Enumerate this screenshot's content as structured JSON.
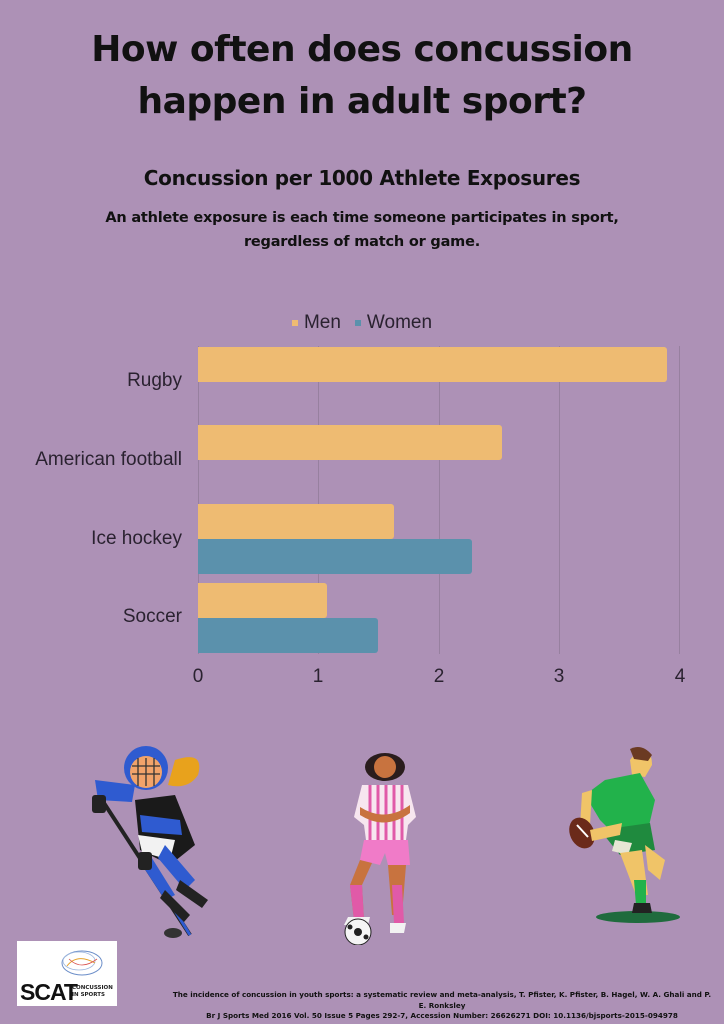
{
  "header": {
    "title_line1": "How often does concussion",
    "title_line2": "happen in adult sport?",
    "subtitle": "Concussion per 1000 Athlete Exposures",
    "description": "An athlete exposure is each time someone participates in sport, regardless of match or game."
  },
  "colors": {
    "background": "#ad91b6",
    "men": "#eebb72",
    "women": "#5b91ac",
    "grid": "#97809f"
  },
  "chart_data": {
    "type": "bar",
    "orientation": "horizontal",
    "title": "Concussion per 1000 Athlete Exposures",
    "xlabel": "",
    "ylabel": "",
    "categories": [
      "Rugby",
      "American football",
      "Ice hockey",
      "Soccer"
    ],
    "series": [
      {
        "name": "Men",
        "color": "#eebb72",
        "values": [
          3.89,
          2.52,
          1.63,
          1.07
        ]
      },
      {
        "name": "Women",
        "color": "#5b91ac",
        "values": [
          null,
          null,
          2.27,
          1.49
        ]
      }
    ],
    "xlim": [
      0,
      4
    ],
    "xticks": [
      "0",
      "1",
      "2",
      "3",
      "4"
    ],
    "grid": "vertical",
    "legend_position": "top"
  },
  "legend": {
    "men": "Men",
    "women": "Women"
  },
  "illustrations": {
    "left": "ice-hockey-player",
    "center": "soccer-player",
    "right": "rugby-player"
  },
  "logo": {
    "name": "SCAT",
    "line1": "CONCUSSION",
    "line2": "IN SPORTS"
  },
  "citation": {
    "line1": "The incidence of concussion in youth sports: a systematic review and meta-analysis, T. Pfister, K. Pfister, B. Hagel, W. A. Ghali and P. E. Ronksley",
    "line2": "Br J Sports Med 2016 Vol. 50 Issue 5 Pages 292-7, Accession Number: 26626271 DOI: 10.1136/bjsports-2015-094978"
  }
}
